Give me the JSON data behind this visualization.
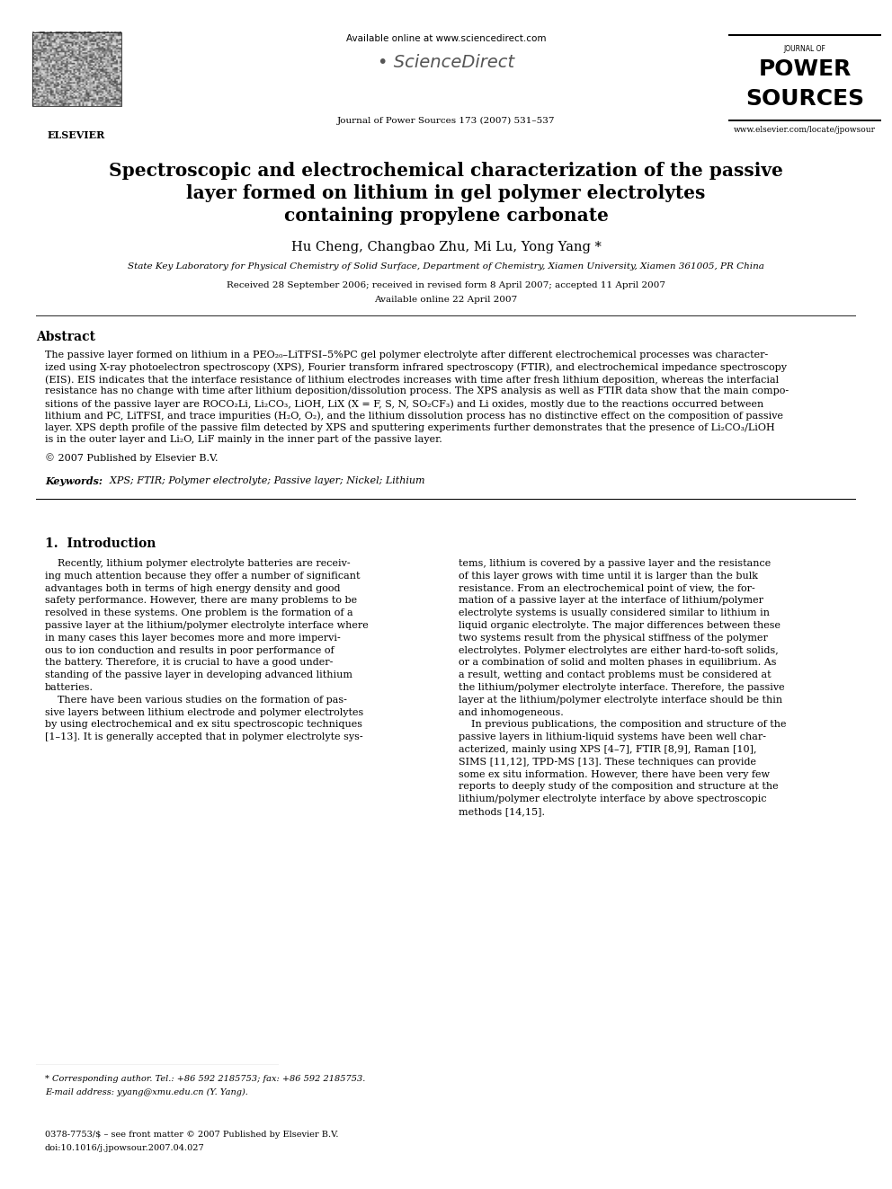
{
  "background_color": "#ffffff",
  "page_width": 9.92,
  "page_height": 13.23,
  "dpi": 100,
  "header_available_text": "Available online at www.sciencedirect.com",
  "header_sciencedirect": "ScienceDirect",
  "header_journal_line": "Journal of Power Sources 173 (2007) 531–537",
  "header_elsevier": "ELSEVIER",
  "header_journal_of": "JOURNAL OF",
  "header_power": "POWER",
  "header_sources": "SOURCES",
  "header_website": "www.elsevier.com/locate/jpowsour",
  "title_line1": "Spectroscopic and electrochemical characterization of the passive",
  "title_line2": "layer formed on lithium in gel polymer electrolytes",
  "title_line3": "containing propylene carbonate",
  "authors": "Hu Cheng, Changbao Zhu, Mi Lu, Yong Yang *",
  "affiliation": "State Key Laboratory for Physical Chemistry of Solid Surface, Department of Chemistry, Xiamen University, Xiamen 361005, PR China",
  "received_text": "Received 28 September 2006; received in revised form 8 April 2007; accepted 11 April 2007",
  "available_text": "Available online 22 April 2007",
  "abstract_title": "Abstract",
  "abstract_line1": "The passive layer formed on lithium in a PEO₂₀–LiTFSI–5%PC gel polymer electrolyte after different electrochemical processes was character-",
  "abstract_line2": "ized using X-ray photoelectron spectroscopy (XPS), Fourier transform infrared spectroscopy (FTIR), and electrochemical impedance spectroscopy",
  "abstract_line3": "(EIS). EIS indicates that the interface resistance of lithium electrodes increases with time after fresh lithium deposition, whereas the interfacial",
  "abstract_line4": "resistance has no change with time after lithium deposition/dissolution process. The XPS analysis as well as FTIR data show that the main compo-",
  "abstract_line5": "sitions of the passive layer are ROCO₂Li, Li₂CO₃, LiOH, LiX (X = F, S, N, SO₂CF₃) and Li oxides, mostly due to the reactions occurred between",
  "abstract_line6": "lithium and PC, LiTFSI, and trace impurities (H₂O, O₂), and the lithium dissolution process has no distinctive effect on the composition of passive",
  "abstract_line7": "layer. XPS depth profile of the passive film detected by XPS and sputtering experiments further demonstrates that the presence of Li₂CO₃/LiOH",
  "abstract_line8": "is in the outer layer and Li₂O, LiF mainly in the inner part of the passive layer.",
  "abstract_copyright": "© 2007 Published by Elsevier B.V.",
  "keywords_bold": "Keywords:",
  "keywords_rest": "  XPS; FTIR; Polymer electrolyte; Passive layer; Nickel; Lithium",
  "sec1_title": "1.  Introduction",
  "col1_lines": [
    "    Recently, lithium polymer electrolyte batteries are receiv-",
    "ing much attention because they offer a number of significant",
    "advantages both in terms of high energy density and good",
    "safety performance. However, there are many problems to be",
    "resolved in these systems. One problem is the formation of a",
    "passive layer at the lithium/polymer electrolyte interface where",
    "in many cases this layer becomes more and more impervi-",
    "ous to ion conduction and results in poor performance of",
    "the battery. Therefore, it is crucial to have a good under-",
    "standing of the passive layer in developing advanced lithium",
    "batteries.",
    "    There have been various studies on the formation of pas-",
    "sive layers between lithium electrode and polymer electrolytes",
    "by using electrochemical and ex situ spectroscopic techniques",
    "[1–13]. It is generally accepted that in polymer electrolyte sys-"
  ],
  "col2_lines": [
    "tems, lithium is covered by a passive layer and the resistance",
    "of this layer grows with time until it is larger than the bulk",
    "resistance. From an electrochemical point of view, the for-",
    "mation of a passive layer at the interface of lithium/polymer",
    "electrolyte systems is usually considered similar to lithium in",
    "liquid organic electrolyte. The major differences between these",
    "two systems result from the physical stiffness of the polymer",
    "electrolytes. Polymer electrolytes are either hard-to-soft solids,",
    "or a combination of solid and molten phases in equilibrium. As",
    "a result, wetting and contact problems must be considered at",
    "the lithium/polymer electrolyte interface. Therefore, the passive",
    "layer at the lithium/polymer electrolyte interface should be thin",
    "and inhomogeneous.",
    "    In previous publications, the composition and structure of the",
    "passive layers in lithium-liquid systems have been well char-",
    "acterized, mainly using XPS [4–7], FTIR [8,9], Raman [10],",
    "SIMS [11,12], TPD-MS [13]. These techniques can provide",
    "some ex situ information. However, there have been very few",
    "reports to deeply study of the composition and structure at the",
    "lithium/polymer electrolyte interface by above spectroscopic",
    "methods [14,15]."
  ],
  "footnote1": "* Corresponding author. Tel.: +86 592 2185753; fax: +86 592 2185753.",
  "footnote2": "E-mail address: yyang@xmu.edu.cn (Y. Yang).",
  "footer_issn": "0378-7753/$ – see front matter © 2007 Published by Elsevier B.V.",
  "footer_doi": "doi:10.1016/j.jpowsour.2007.04.027"
}
